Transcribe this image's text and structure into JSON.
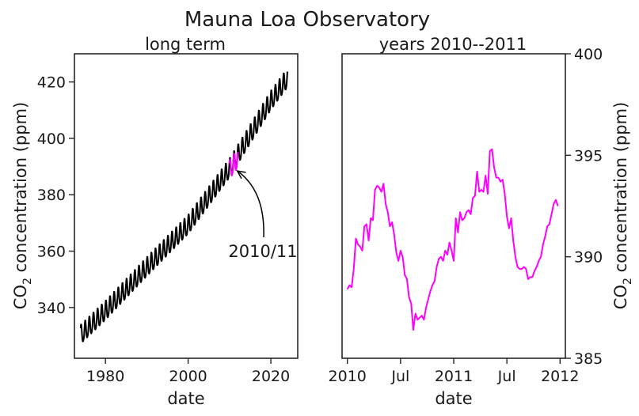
{
  "figure_title": "Mauna Loa Observatory",
  "chart_data": [
    {
      "type": "line",
      "title": "long term",
      "xlabel": "date",
      "ylabel_main": "CO",
      "ylabel_sub": "2",
      "ylabel_rest": " concentration (ppm)",
      "xlim": [
        1972.5,
        2026.5
      ],
      "ylim": [
        322,
        430
      ],
      "x_ticks": [
        1980,
        2000,
        2020
      ],
      "x_tick_labels": [
        "1980",
        "2000",
        "2020"
      ],
      "y_ticks": [
        340,
        360,
        380,
        400,
        420
      ],
      "y_tick_labels": [
        "340",
        "360",
        "380",
        "400",
        "420"
      ],
      "annotation": {
        "text": "2010/11",
        "target_x": 2011.5,
        "target_y": 389
      },
      "series": [
        {
          "color": "#000000",
          "x_start": 1974.0,
          "x_end": 2024.0,
          "trend": [
            [
              1974,
              330
            ],
            [
              1980,
              338.5
            ],
            [
              1990,
              354
            ],
            [
              2000,
              369
            ],
            [
              2010,
              389
            ],
            [
              2020,
              413
            ],
            [
              2024,
              421
            ]
          ],
          "seasonal_amplitude": 3.4
        },
        {
          "color": "#ff00ff",
          "x_start": 2010.0,
          "x_end": 2012.0,
          "trend": [
            [
              2010,
              388.5
            ],
            [
              2012,
              392.5
            ]
          ],
          "seasonal_amplitude": 3.4
        }
      ]
    },
    {
      "type": "line",
      "title": "years 2010--2011",
      "xlabel": "date",
      "ylabel_main": "CO",
      "ylabel_sub": "2",
      "ylabel_rest": " concentration (ppm)",
      "y_axis_position": "right",
      "xlim": [
        2009.95,
        2012.05
      ],
      "ylim": [
        385,
        400
      ],
      "x_ticks": [
        2010,
        2010.5,
        2011,
        2011.5,
        2012
      ],
      "x_tick_labels": [
        "2010",
        "Jul",
        "2011",
        "Jul",
        "2012"
      ],
      "y_ticks": [
        385,
        390,
        395,
        400
      ],
      "y_tick_labels": [
        "385",
        "390",
        "395",
        "400"
      ],
      "series": [
        {
          "color": "#ff00ff",
          "x": [
            2010.0,
            2010.02,
            2010.04,
            2010.06,
            2010.08,
            2010.1,
            2010.12,
            2010.14,
            2010.16,
            2010.18,
            2010.2,
            2010.22,
            2010.24,
            2010.26,
            2010.28,
            2010.3,
            2010.32,
            2010.34,
            2010.36,
            2010.38,
            2010.4,
            2010.42,
            2010.44,
            2010.46,
            2010.48,
            2010.5,
            2010.52,
            2010.54,
            2010.56,
            2010.58,
            2010.6,
            2010.62,
            2010.64,
            2010.66,
            2010.68,
            2010.7,
            2010.72,
            2010.74,
            2010.76,
            2010.78,
            2010.8,
            2010.82,
            2010.84,
            2010.86,
            2010.88,
            2010.9,
            2010.92,
            2010.94,
            2010.96,
            2010.98,
            2011.0,
            2011.02,
            2011.04,
            2011.06,
            2011.08,
            2011.1,
            2011.12,
            2011.14,
            2011.16,
            2011.18,
            2011.2,
            2011.22,
            2011.24,
            2011.26,
            2011.28,
            2011.3,
            2011.32,
            2011.34,
            2011.36,
            2011.38,
            2011.4,
            2011.42,
            2011.44,
            2011.46,
            2011.48,
            2011.5,
            2011.52,
            2011.54,
            2011.56,
            2011.58,
            2011.6,
            2011.62,
            2011.64,
            2011.66,
            2011.68,
            2011.7,
            2011.72,
            2011.74,
            2011.76,
            2011.78,
            2011.8,
            2011.82,
            2011.84,
            2011.86,
            2011.88,
            2011.9,
            2011.92,
            2011.94,
            2011.96,
            2011.98
          ],
          "y": [
            388.4,
            388.6,
            388.5,
            389.4,
            390.9,
            390.6,
            390.5,
            390.3,
            391.5,
            391.6,
            390.8,
            391.9,
            391.8,
            393.3,
            393.5,
            393.4,
            393.2,
            393.6,
            392.6,
            392.2,
            391.5,
            391.7,
            391.1,
            390.2,
            389.8,
            390.3,
            390.0,
            389.1,
            388.9,
            388.0,
            387.7,
            386.4,
            387.2,
            386.9,
            387.0,
            387.1,
            386.9,
            387.5,
            387.9,
            388.3,
            388.6,
            388.8,
            389.5,
            389.9,
            390.0,
            389.8,
            390.3,
            390.1,
            390.7,
            390.3,
            389.8,
            391.9,
            391.2,
            392.2,
            391.8,
            391.9,
            392.2,
            392.3,
            392.1,
            392.9,
            393.0,
            394.2,
            393.2,
            393.3,
            393.2,
            394.0,
            393.1,
            395.2,
            395.3,
            394.4,
            393.9,
            393.9,
            393.7,
            393.8,
            393.1,
            392.0,
            391.4,
            391.9,
            390.8,
            390.0,
            389.5,
            389.4,
            389.4,
            389.5,
            389.4,
            388.9,
            389.0,
            389.0,
            389.3,
            389.5,
            389.8,
            390.0,
            390.6,
            391.0,
            391.5,
            391.6,
            392.1,
            392.6,
            392.8,
            392.5
          ]
        }
      ]
    }
  ]
}
